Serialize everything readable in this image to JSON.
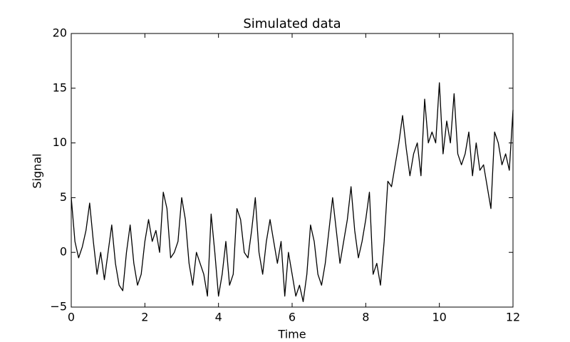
{
  "chart_data": {
    "type": "line",
    "title": "Simulated data",
    "x_label": "Time",
    "y_label": "Signal",
    "color": "#000000",
    "x": [
      0,
      0.1,
      0.2,
      0.3,
      0.4,
      0.5,
      0.6,
      0.7,
      0.8,
      0.9,
      1,
      1.1,
      1.2,
      1.3,
      1.4,
      1.5,
      1.6,
      1.7,
      1.8,
      1.9,
      2,
      2.1,
      2.2,
      2.3,
      2.4,
      2.5,
      2.6,
      2.7,
      2.8,
      2.9,
      3,
      3.1,
      3.2,
      3.3,
      3.4,
      3.5,
      3.6,
      3.7,
      3.8,
      3.9,
      4,
      4.1,
      4.2,
      4.3,
      4.4,
      4.5,
      4.6,
      4.7,
      4.8,
      4.9,
      5,
      5.1,
      5.2,
      5.3,
      5.4,
      5.5,
      5.6,
      5.7,
      5.8,
      5.9,
      6,
      6.1,
      6.2,
      6.3,
      6.4,
      6.5,
      6.6,
      6.7,
      6.8,
      6.9,
      7,
      7.1,
      7.2,
      7.3,
      7.4,
      7.5,
      7.6,
      7.7,
      7.8,
      7.9,
      8,
      8.1,
      8.2,
      8.3,
      8.4,
      8.5,
      8.6,
      8.7,
      8.8,
      8.9,
      9,
      9.1,
      9.2,
      9.3,
      9.4,
      9.5,
      9.6,
      9.7,
      9.8,
      9.9,
      10,
      10.1,
      10.2,
      10.3,
      10.4,
      10.5,
      10.6,
      10.7,
      10.8,
      10.9,
      11,
      11.1,
      11.2,
      11.3,
      11.4,
      11.5,
      11.6,
      11.7,
      11.8,
      11.9,
      12
    ],
    "values": [
      5,
      1,
      -0.5,
      0.5,
      2,
      4.5,
      1,
      -2,
      0,
      -2.5,
      0,
      2.5,
      -1,
      -3,
      -3.5,
      0,
      2.5,
      -1,
      -3,
      -2,
      1,
      3,
      1,
      2,
      0,
      5.5,
      4,
      -0.5,
      0,
      1,
      5,
      3,
      -1,
      -3,
      0,
      -1,
      -2,
      -4,
      3.5,
      0,
      -4,
      -2,
      1,
      -3,
      -2,
      4,
      3,
      0,
      -0.5,
      2,
      5,
      0,
      -2,
      1,
      3,
      1,
      -1,
      1,
      -4,
      0,
      -2,
      -4,
      -3,
      -4.5,
      -2,
      2.5,
      1,
      -2,
      -3,
      -1,
      2,
      5,
      2,
      -1,
      1,
      3,
      6,
      2,
      -0.5,
      1,
      3,
      5.5,
      -2,
      -1,
      -3,
      1,
      6.5,
      6,
      8,
      10,
      12.5,
      9.5,
      7,
      9,
      10,
      7,
      14,
      10,
      11,
      10,
      15.5,
      9,
      12,
      10,
      14.5,
      9,
      8,
      9,
      11,
      7,
      10,
      7.5,
      8,
      6,
      4,
      11,
      10,
      8,
      9,
      7.5,
      13
    ],
    "xlim": [
      0,
      12
    ],
    "xticks": [
      0,
      2,
      4,
      6,
      8,
      10,
      12
    ],
    "ylim": [
      -5,
      20
    ],
    "yticks": [
      {
        "value": -5,
        "label": "−5"
      },
      0,
      5,
      10,
      15,
      20
    ]
  }
}
